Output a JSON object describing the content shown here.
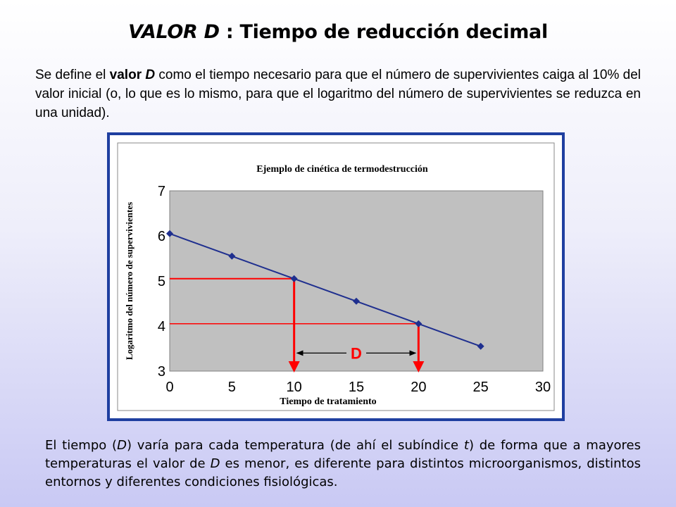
{
  "title": {
    "main_italic": "VALOR D",
    "main_rest": " : Tiempo de reducción decimal"
  },
  "intro": {
    "t1": "Se define el ",
    "b1": "valor",
    "t2": " ",
    "i1": "D",
    "t3": " como el tiempo necesario para que el número de supervivientes caiga al 10% del valor inicial (o, lo que es lo mismo, para que el logaritmo del número de supervivientes se reduzca en una unidad)."
  },
  "outro": {
    "t1": "El tiempo (",
    "i1": "D",
    "t2": ") varía para cada temperatura (de ahí el subíndice ",
    "i2": "t",
    "t3": ") de forma que a mayores temperaturas el valor de ",
    "i3": "D",
    "t4": " es menor, es diferente para distintos microorganismos, distintos entornos y diferentes condiciones fisiológicas."
  },
  "chart_data": {
    "type": "line",
    "title": "Ejemplo de cinética de termodestrucción",
    "xlabel": "Tiempo de tratamiento",
    "ylabel": "Logaritmo del número de supervivientes",
    "x_ticks": [
      "0",
      "5",
      "10",
      "15",
      "20",
      "25",
      "30"
    ],
    "y_ticks": [
      "3",
      "4",
      "5",
      "6",
      "7"
    ],
    "xlim": [
      0,
      30
    ],
    "ylim": [
      3,
      7
    ],
    "grid": false,
    "series": [
      {
        "x": [
          0,
          5,
          10,
          15,
          20,
          25
        ],
        "y": [
          6.05,
          5.55,
          5.05,
          4.55,
          4.05,
          3.55
        ],
        "color": "#1f2f8f"
      }
    ],
    "annotations": {
      "d_label": "D",
      "d_from_x": 10,
      "d_to_x": 20,
      "level_high": 5.05,
      "level_low": 4.05,
      "annotation_color": "#ff0000"
    },
    "colors": {
      "plot_bg": "#c0c0c0",
      "frame": "#1f3fa0"
    }
  }
}
